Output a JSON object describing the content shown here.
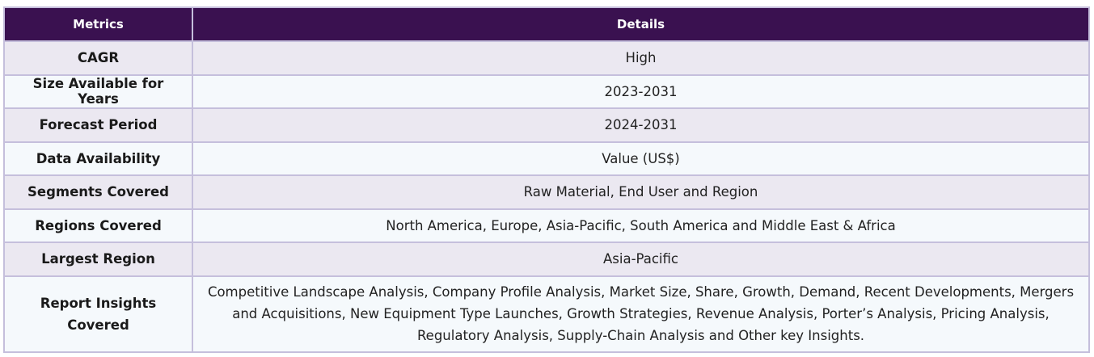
{
  "table": {
    "headers": [
      "Metrics",
      "Details"
    ],
    "rows": [
      {
        "metric": "CAGR",
        "detail": "High"
      },
      {
        "metric": "Size Available for Years",
        "detail": "2023-2031"
      },
      {
        "metric": "Forecast Period",
        "detail": "2024-2031"
      },
      {
        "metric": "Data Availability",
        "detail": "Value (US$)"
      },
      {
        "metric": "Segments Covered",
        "detail": "Raw Material, End User and Region"
      },
      {
        "metric": "Regions Covered",
        "detail": "North America, Europe, Asia-Pacific, South America and Middle East & Africa"
      },
      {
        "metric": "Largest Region",
        "detail": "Asia-Pacific"
      },
      {
        "metric": "Report Insights Covered",
        "detail": "Competitive Landscape Analysis, Company Profile Analysis, Market Size, Share, Growth, Demand, Recent Developments, Mergers and Acquisitions, New Equipment Type Launches, Growth Strategies, Revenue Analysis, Porter’s Analysis, Pricing Analysis, Regulatory Analysis, Supply-Chain Analysis and Other key Insights."
      }
    ]
  },
  "colors": {
    "header_bg": "#3a1150",
    "row_odd_bg": "#ebe8f1",
    "row_even_bg": "#f5f9fc",
    "border": "#c5bfdc"
  }
}
